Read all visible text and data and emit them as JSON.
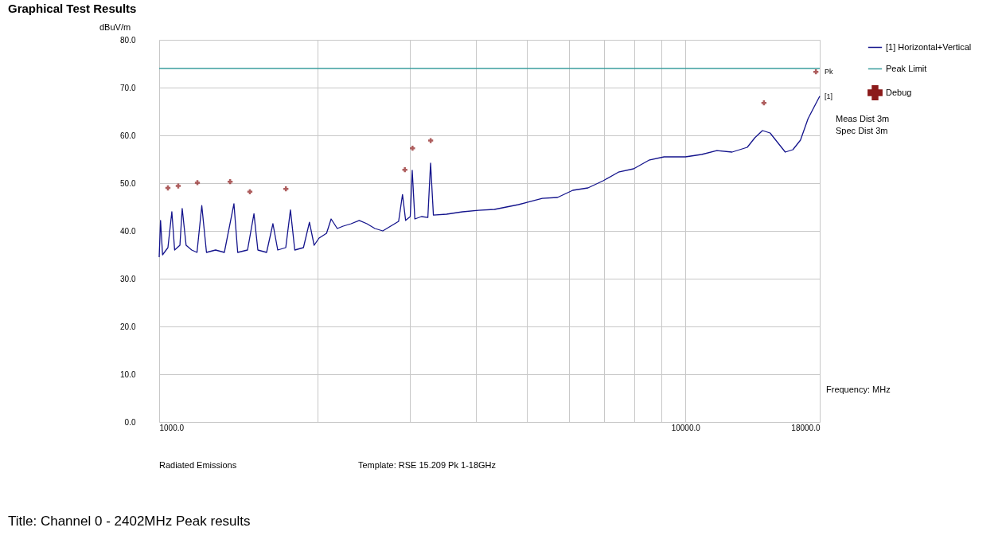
{
  "chart_data": {
    "type": "line",
    "title": "Graphical Test Results",
    "xlabel": "Frequency: MHz",
    "ylabel": "dBuV/m",
    "log": "x",
    "grid": true,
    "legend": "top right",
    "line_style": "solid",
    "xlim": [
      1000,
      18000
    ],
    "ylim": [
      0,
      80
    ],
    "xticks": [
      {
        "value": 1000,
        "label": "1000.0"
      },
      {
        "value": 2000,
        "label": null
      },
      {
        "value": 3000,
        "label": null
      },
      {
        "value": 4000,
        "label": null
      },
      {
        "value": 5000,
        "label": null
      },
      {
        "value": 6000,
        "label": null
      },
      {
        "value": 7000,
        "label": null
      },
      {
        "value": 8000,
        "label": null
      },
      {
        "value": 9000,
        "label": null
      },
      {
        "value": 10000,
        "label": "10000.0"
      },
      {
        "value": 18000,
        "label": "18000.0"
      }
    ],
    "yticks": [
      {
        "value": 0,
        "label": "0.0"
      },
      {
        "value": 10,
        "label": "10.0"
      },
      {
        "value": 20,
        "label": "20.0"
      },
      {
        "value": 30,
        "label": "30.0"
      },
      {
        "value": 40,
        "label": "40.0"
      },
      {
        "value": 50,
        "label": "50.0"
      },
      {
        "value": 60,
        "label": "60.0"
      },
      {
        "value": 70,
        "label": "70.0"
      },
      {
        "value": 80,
        "label": "80.0"
      }
    ],
    "series": [
      {
        "name": "[1] Horizontal+Vertical",
        "color": "#14148c",
        "marker": "none",
        "x": [
          1000,
          1006,
          1015,
          1039,
          1057,
          1070,
          1095,
          1106,
          1125,
          1153,
          1180,
          1205,
          1230,
          1280,
          1330,
          1387,
          1410,
          1472,
          1514,
          1540,
          1600,
          1645,
          1680,
          1740,
          1776,
          1810,
          1880,
          1930,
          1970,
          2013,
          2080,
          2122,
          2180,
          2237,
          2316,
          2400,
          2482,
          2570,
          2660,
          2754,
          2851,
          2900,
          2940,
          3000,
          3026,
          3061,
          3150,
          3240,
          3279,
          3320,
          3517,
          3771,
          4044,
          4336,
          4815,
          5346,
          5714,
          6108,
          6529,
          6979,
          7459,
          7973,
          8522,
          9108,
          10000,
          10735,
          11474,
          12264,
          13108,
          13551,
          14010,
          14484,
          14973,
          15479,
          16003,
          16543,
          17103,
          18000
        ],
        "values": [
          34.5,
          42.2,
          35,
          36.5,
          44,
          36,
          37,
          44.7,
          37,
          36,
          35.5,
          45.3,
          35.5,
          36,
          35.5,
          45.7,
          35.5,
          36,
          43.6,
          36,
          35.5,
          41.5,
          36,
          36.5,
          44.4,
          36,
          36.5,
          41.8,
          37,
          38.5,
          39.5,
          42.5,
          40.5,
          41,
          41.5,
          42.2,
          41.5,
          40.5,
          40,
          41,
          42,
          47.6,
          42.2,
          43,
          52.7,
          42.5,
          43,
          42.8,
          54.2,
          43.3,
          43.5,
          44,
          44.3,
          44.5,
          45.5,
          46.8,
          47,
          48.5,
          49,
          50.5,
          52.3,
          53,
          54.8,
          55.5,
          55.5,
          56,
          56.8,
          56.5,
          57.5,
          59.5,
          61,
          60.5,
          58.5,
          56.5,
          57,
          59,
          63.5,
          68.2
        ]
      },
      {
        "name": "Peak Limit",
        "color": "#3a9e9e",
        "marker": "none",
        "x": [
          1000,
          18000
        ],
        "values": [
          74,
          74
        ]
      },
      {
        "name": "Debug",
        "type": "scatter",
        "color": "#8b1a1a",
        "marker": "cross",
        "x": [
          1039,
          1087,
          1182,
          1364,
          1487,
          1741,
          2930,
          3030,
          3280,
          14100,
          17700
        ],
        "values": [
          49,
          49.4,
          50.1,
          50.3,
          48.2,
          48.8,
          52.8,
          57.3,
          58.9,
          66.8,
          73.3
        ]
      }
    ],
    "annotations": [
      {
        "text": "Pk",
        "x": 18000,
        "y": 73.3
      },
      {
        "text": "[1]",
        "x": 18000,
        "y": 68.2
      },
      "Meas Dist 3m",
      "Spec Dist 3m",
      "Radiated Emissions",
      "Template: RSE 15.209 Pk 1-18GHz",
      "Title: Channel 0 - 2402MHz Peak results"
    ]
  }
}
